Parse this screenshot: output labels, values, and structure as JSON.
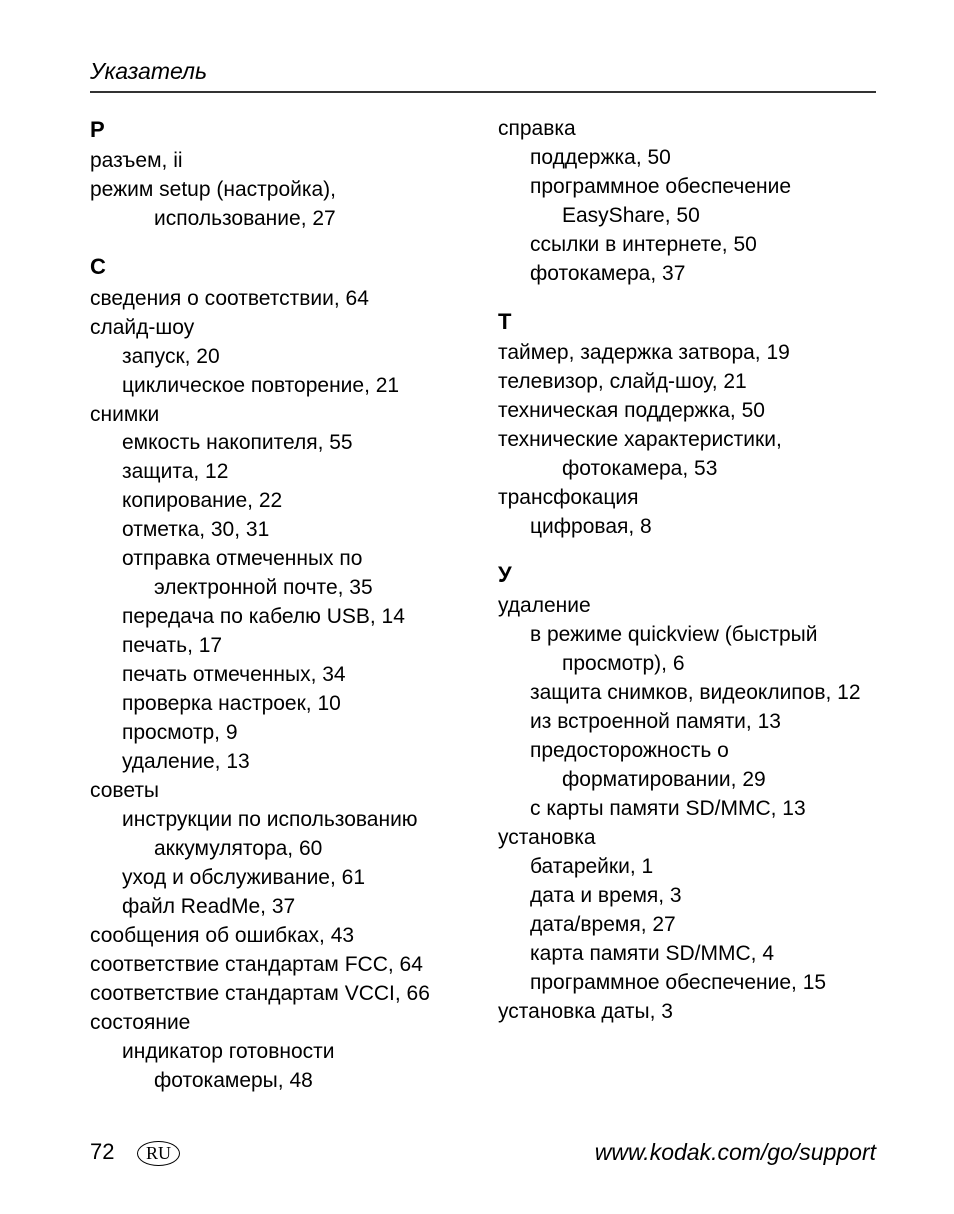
{
  "header": {
    "title": "Указатель"
  },
  "footer": {
    "page_number": "72",
    "lang_code": "RU",
    "url": "www.kodak.com/go/support"
  },
  "left_column": [
    {
      "type": "letter",
      "text": "Р",
      "first": true
    },
    {
      "type": "entry",
      "text": "разъем, ii"
    },
    {
      "type": "entry",
      "text": "режим setup (настройка),"
    },
    {
      "type": "sub2",
      "text": "использование, 27"
    },
    {
      "type": "letter",
      "text": "С"
    },
    {
      "type": "entry",
      "text": "сведения о соответствии, 64"
    },
    {
      "type": "entry",
      "text": "слайд-шоу"
    },
    {
      "type": "sub1",
      "text": "запуск, 20"
    },
    {
      "type": "sub1",
      "text": "циклическое повторение, 21"
    },
    {
      "type": "entry",
      "text": "снимки"
    },
    {
      "type": "sub1",
      "text": "емкость накопителя, 55"
    },
    {
      "type": "sub1",
      "text": "защита, 12"
    },
    {
      "type": "sub1",
      "text": "копирование, 22"
    },
    {
      "type": "sub1",
      "text": "отметка, 30, 31"
    },
    {
      "type": "sub1hang",
      "text": "отправка отмеченных по электронной почте, 35"
    },
    {
      "type": "sub1",
      "text": "передача по кабелю USB, 14"
    },
    {
      "type": "sub1",
      "text": "печать, 17"
    },
    {
      "type": "sub1",
      "text": "печать отмеченных, 34"
    },
    {
      "type": "sub1",
      "text": "проверка настроек, 10"
    },
    {
      "type": "sub1",
      "text": "просмотр, 9"
    },
    {
      "type": "sub1",
      "text": "удаление, 13"
    },
    {
      "type": "entry",
      "text": "советы"
    },
    {
      "type": "sub1hang",
      "text": "инструкции по использованию аккумулятора, 60"
    },
    {
      "type": "sub1",
      "text": "уход и обслуживание, 61"
    },
    {
      "type": "sub1",
      "text": "файл ReadMe, 37"
    },
    {
      "type": "entry",
      "text": "сообщения об ошибках, 43"
    },
    {
      "type": "entry",
      "text": "соответствие стандартам FCC, 64"
    },
    {
      "type": "entry",
      "text": "соответствие стандартам VCCI, 66"
    },
    {
      "type": "entry",
      "text": "состояние"
    },
    {
      "type": "sub1hang",
      "text": "индикатор готовности фотокамеры, 48"
    }
  ],
  "right_column": [
    {
      "type": "entry",
      "text": "справка"
    },
    {
      "type": "sub1",
      "text": "поддержка, 50"
    },
    {
      "type": "sub1hang",
      "text": "программное обеспечение EasyShare, 50"
    },
    {
      "type": "sub1",
      "text": "ссылки в интернете, 50"
    },
    {
      "type": "sub1",
      "text": "фотокамера, 37"
    },
    {
      "type": "letter",
      "text": "Т"
    },
    {
      "type": "entry",
      "text": "таймер, задержка затвора, 19"
    },
    {
      "type": "entry",
      "text": "телевизор, слайд-шоу, 21"
    },
    {
      "type": "entry",
      "text": "техническая поддержка, 50"
    },
    {
      "type": "entry",
      "text": "технические характеристики,"
    },
    {
      "type": "sub2",
      "text": "фотокамера, 53"
    },
    {
      "type": "entry",
      "text": "трансфокация"
    },
    {
      "type": "sub1",
      "text": "цифровая, 8"
    },
    {
      "type": "letter",
      "text": "У"
    },
    {
      "type": "entry",
      "text": "удаление"
    },
    {
      "type": "sub1hang",
      "text": "в режиме quickview (быстрый просмотр), 6"
    },
    {
      "type": "sub1",
      "text": "защита снимков, видеоклипов, 12"
    },
    {
      "type": "sub1",
      "text": "из встроенной памяти, 13"
    },
    {
      "type": "sub1hang",
      "text": "предосторожность о форматировании, 29"
    },
    {
      "type": "sub1",
      "text": "с карты памяти SD/MMC, 13"
    },
    {
      "type": "entry",
      "text": "установка"
    },
    {
      "type": "sub1",
      "text": "батарейки, 1"
    },
    {
      "type": "sub1",
      "text": "дата и время, 3"
    },
    {
      "type": "sub1",
      "text": "дата/время, 27"
    },
    {
      "type": "sub1",
      "text": "карта памяти SD/MMC, 4"
    },
    {
      "type": "sub1",
      "text": "программное обеспечение, 15"
    },
    {
      "type": "entry",
      "text": "установка даты, 3"
    }
  ]
}
